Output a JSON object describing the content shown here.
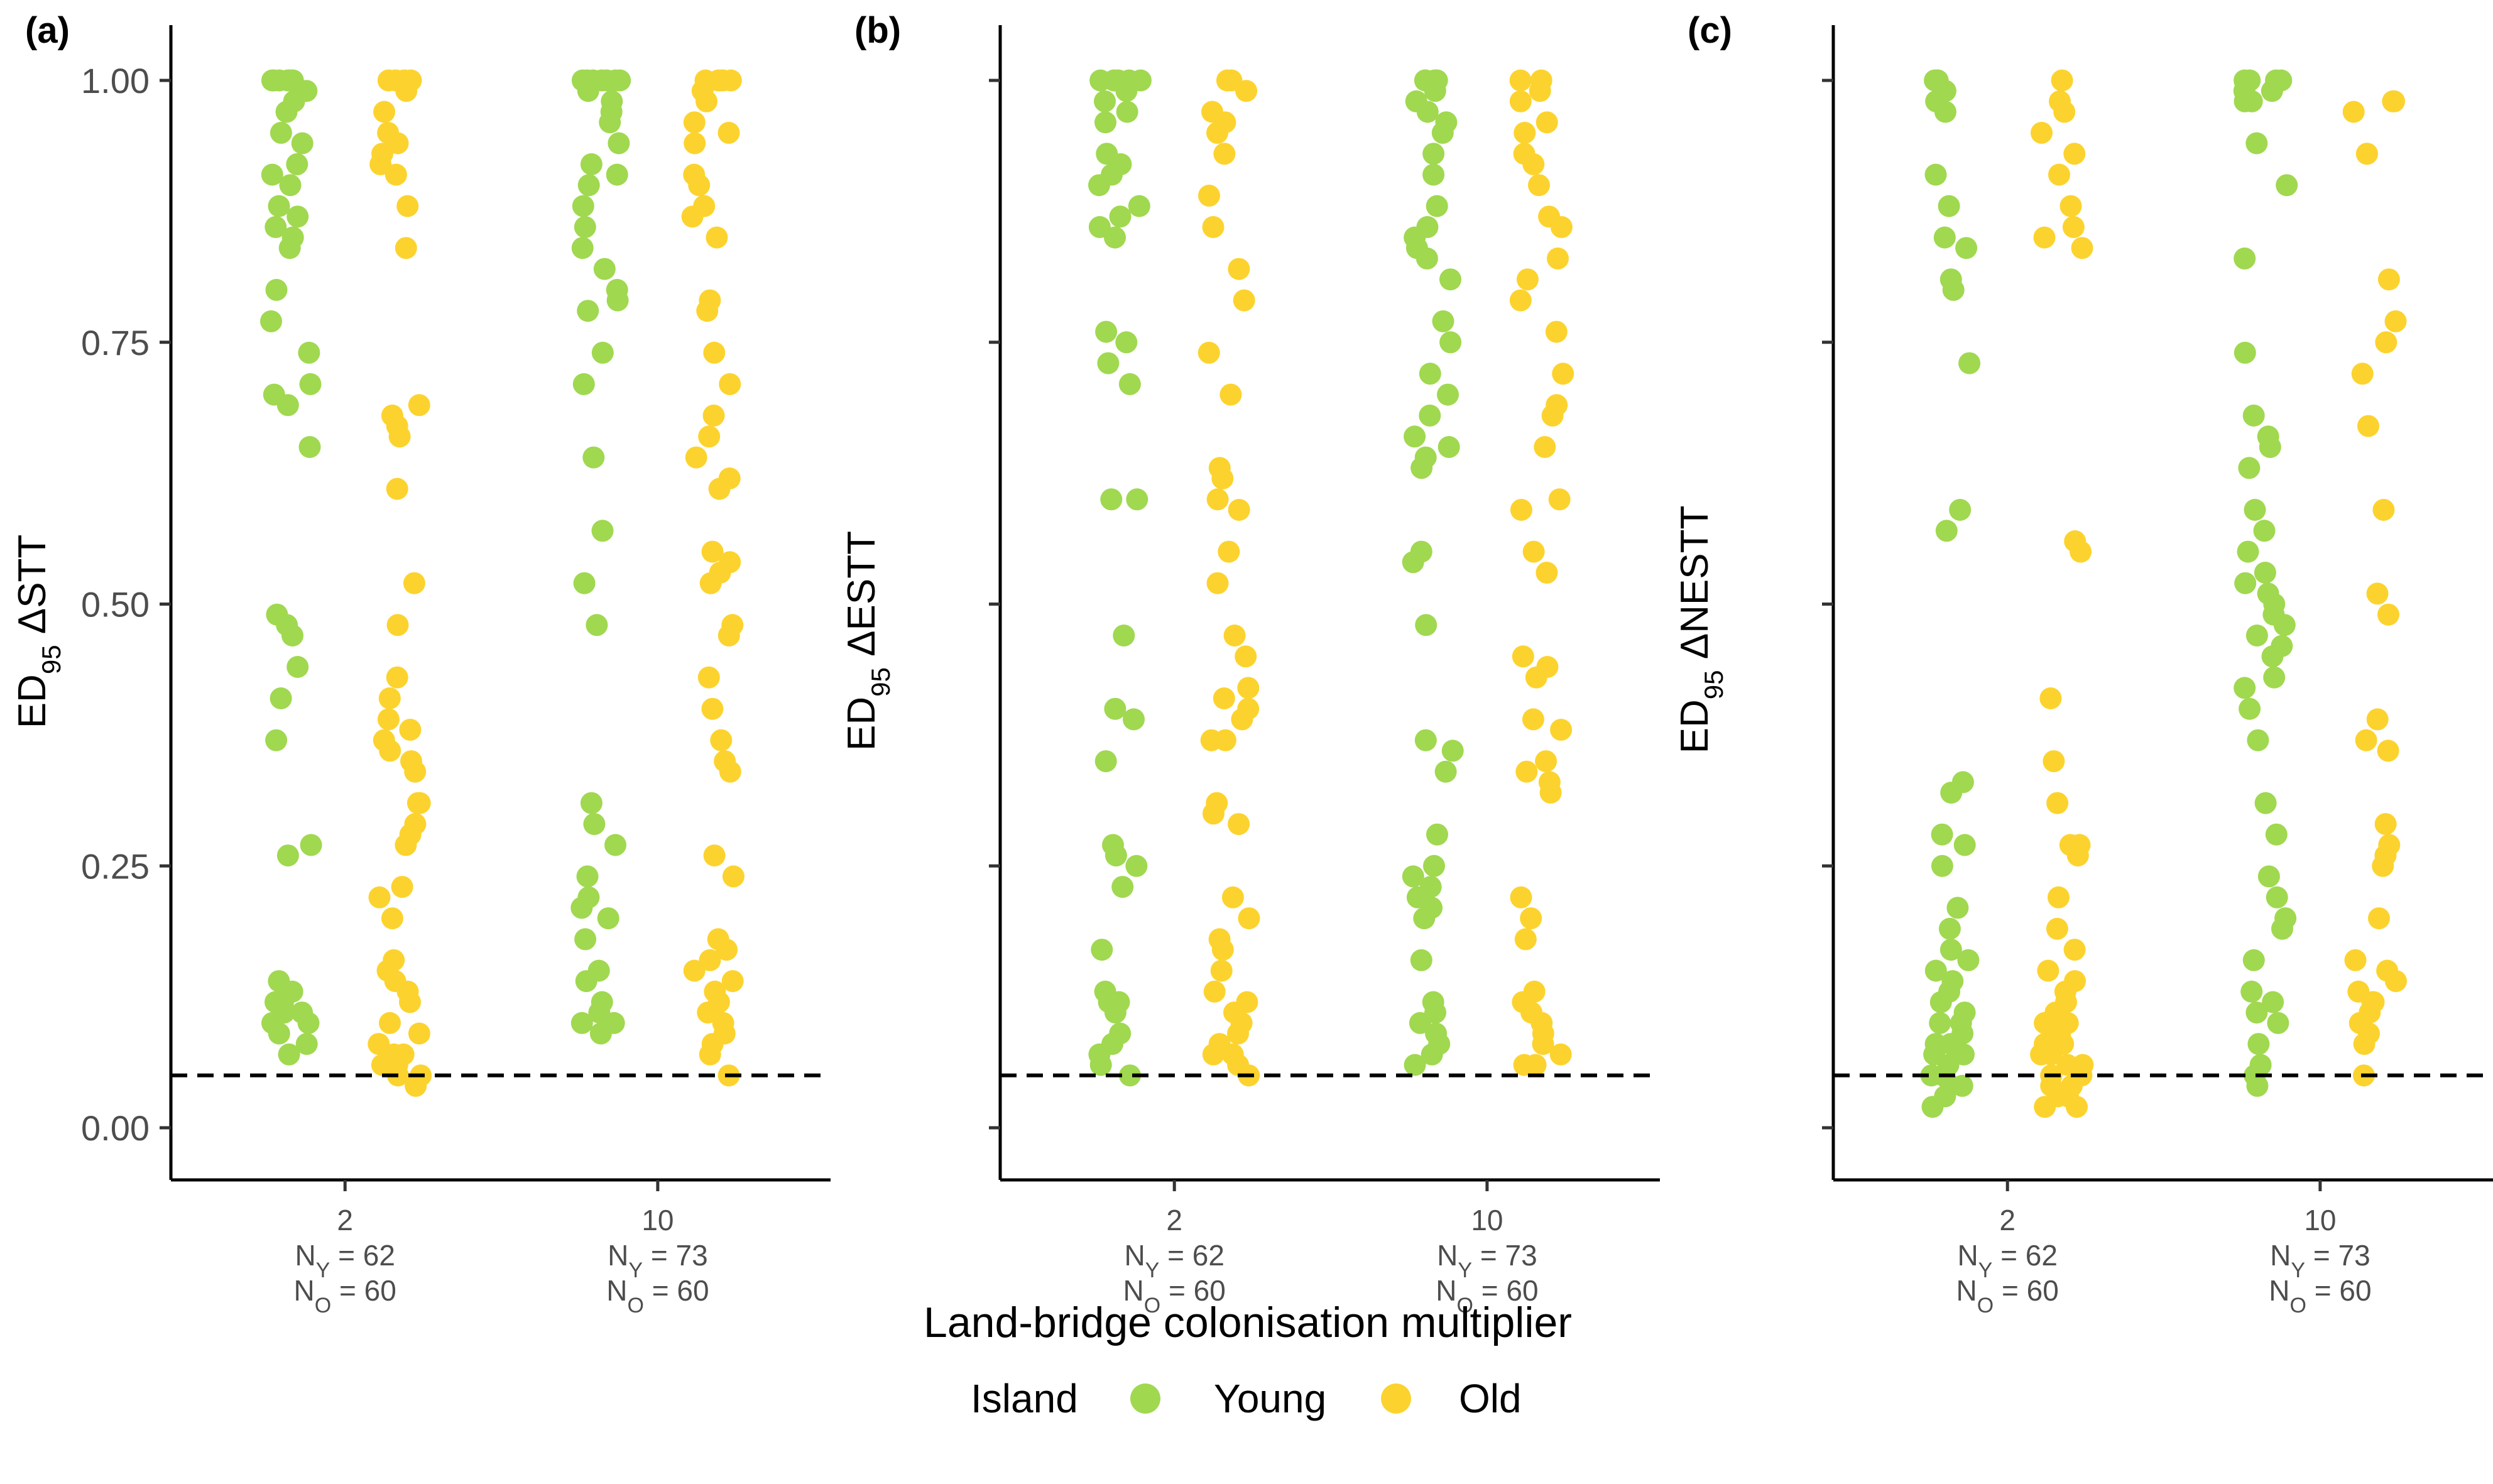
{
  "figure": {
    "xlabel": "Land-bridge colonisation multiplier",
    "legend": {
      "title": "Island",
      "placement": "bottom",
      "entries": [
        {
          "label": "Young",
          "color": "#a0d850"
        },
        {
          "label": "Old",
          "color": "#fcd32e"
        }
      ]
    },
    "categories": [
      "2",
      "10"
    ],
    "category_counts": [
      {
        "young": "62",
        "old": "60"
      },
      {
        "young": "73",
        "old": "60"
      }
    ],
    "y_ticks": [
      "0.00",
      "0.25",
      "0.50",
      "0.75",
      "1.00"
    ]
  },
  "chart_data": [
    {
      "type": "scatter",
      "panel_label": "(a)",
      "ylabel_main": "ED",
      "ylabel_sub": "95",
      "ylabel_rest": " ΔSTT",
      "ylim": [
        -0.05,
        1.05
      ],
      "reference_line": 0.05,
      "y_tick_labels_shown": true,
      "series": [
        {
          "name": "Young",
          "category": "2",
          "values": [
            1.0,
            1.0,
            1.0,
            1.0,
            1.0,
            1.0,
            1.0,
            0.99,
            0.98,
            0.97,
            0.95,
            0.94,
            0.92,
            0.91,
            0.9,
            0.88,
            0.87,
            0.86,
            0.85,
            0.84,
            0.8,
            0.77,
            0.74,
            0.71,
            0.7,
            0.69,
            0.65,
            0.49,
            0.48,
            0.47,
            0.44,
            0.41,
            0.37,
            0.27,
            0.26,
            0.14,
            0.13,
            0.12,
            0.12,
            0.11,
            0.11,
            0.11,
            0.1,
            0.1,
            0.09,
            0.08,
            0.07
          ]
        },
        {
          "name": "Old",
          "category": "2",
          "values": [
            1.0,
            1.0,
            1.0,
            1.0,
            0.99,
            0.97,
            0.95,
            0.94,
            0.93,
            0.92,
            0.91,
            0.88,
            0.84,
            0.69,
            0.68,
            0.67,
            0.66,
            0.61,
            0.52,
            0.48,
            0.43,
            0.41,
            0.39,
            0.38,
            0.37,
            0.36,
            0.35,
            0.34,
            0.31,
            0.31,
            0.29,
            0.28,
            0.27,
            0.23,
            0.22,
            0.2,
            0.16,
            0.15,
            0.14,
            0.13,
            0.12,
            0.1,
            0.09,
            0.08,
            0.07,
            0.07,
            0.06,
            0.06,
            0.05,
            0.05,
            0.04
          ]
        },
        {
          "name": "Young",
          "category": "10",
          "values": [
            1.0,
            1.0,
            1.0,
            1.0,
            1.0,
            1.0,
            1.0,
            0.99,
            0.98,
            0.97,
            0.96,
            0.94,
            0.92,
            0.91,
            0.9,
            0.88,
            0.86,
            0.84,
            0.82,
            0.8,
            0.79,
            0.78,
            0.74,
            0.71,
            0.64,
            0.57,
            0.52,
            0.48,
            0.31,
            0.29,
            0.27,
            0.24,
            0.22,
            0.21,
            0.2,
            0.18,
            0.15,
            0.14,
            0.12,
            0.11,
            0.1,
            0.1,
            0.09
          ]
        },
        {
          "name": "Old",
          "category": "10",
          "values": [
            1.0,
            1.0,
            1.0,
            1.0,
            1.0,
            0.99,
            0.98,
            0.96,
            0.95,
            0.94,
            0.91,
            0.9,
            0.88,
            0.87,
            0.85,
            0.79,
            0.78,
            0.74,
            0.71,
            0.68,
            0.66,
            0.64,
            0.62,
            0.61,
            0.55,
            0.54,
            0.53,
            0.52,
            0.48,
            0.47,
            0.43,
            0.4,
            0.37,
            0.35,
            0.34,
            0.26,
            0.24,
            0.18,
            0.17,
            0.16,
            0.15,
            0.14,
            0.13,
            0.12,
            0.11,
            0.1,
            0.09,
            0.08,
            0.07,
            0.05
          ]
        }
      ]
    },
    {
      "type": "scatter",
      "panel_label": "(b)",
      "ylabel_main": "ED",
      "ylabel_sub": "95",
      "ylabel_rest": " ΔESTT",
      "ylim": [
        -0.05,
        1.05
      ],
      "reference_line": 0.05,
      "y_tick_labels_shown": false,
      "series": [
        {
          "name": "Young",
          "category": "2",
          "values": [
            1.0,
            1.0,
            1.0,
            1.0,
            1.0,
            0.99,
            0.98,
            0.97,
            0.96,
            0.93,
            0.92,
            0.91,
            0.9,
            0.88,
            0.87,
            0.86,
            0.85,
            0.76,
            0.75,
            0.73,
            0.71,
            0.6,
            0.6,
            0.47,
            0.4,
            0.39,
            0.35,
            0.27,
            0.26,
            0.25,
            0.23,
            0.17,
            0.13,
            0.12,
            0.12,
            0.11,
            0.09,
            0.08,
            0.07,
            0.06,
            0.05
          ]
        },
        {
          "name": "Old",
          "category": "2",
          "values": [
            1.0,
            1.0,
            0.99,
            0.97,
            0.96,
            0.95,
            0.93,
            0.89,
            0.86,
            0.82,
            0.79,
            0.74,
            0.7,
            0.63,
            0.62,
            0.6,
            0.59,
            0.55,
            0.52,
            0.47,
            0.45,
            0.42,
            0.41,
            0.4,
            0.39,
            0.37,
            0.37,
            0.31,
            0.3,
            0.29,
            0.22,
            0.2,
            0.18,
            0.17,
            0.15,
            0.13,
            0.12,
            0.11,
            0.1,
            0.09,
            0.08,
            0.07,
            0.07,
            0.06,
            0.05
          ]
        },
        {
          "name": "Young",
          "category": "10",
          "values": [
            1.0,
            1.0,
            1.0,
            1.0,
            0.99,
            0.98,
            0.97,
            0.96,
            0.95,
            0.93,
            0.91,
            0.88,
            0.86,
            0.85,
            0.84,
            0.83,
            0.81,
            0.77,
            0.75,
            0.72,
            0.7,
            0.68,
            0.66,
            0.65,
            0.64,
            0.63,
            0.55,
            0.54,
            0.48,
            0.37,
            0.36,
            0.34,
            0.28,
            0.25,
            0.24,
            0.23,
            0.22,
            0.21,
            0.2,
            0.16,
            0.12,
            0.11,
            0.1,
            0.09,
            0.08,
            0.07,
            0.06
          ]
        },
        {
          "name": "Old",
          "category": "10",
          "values": [
            1.0,
            1.0,
            0.99,
            0.98,
            0.96,
            0.95,
            0.93,
            0.92,
            0.9,
            0.87,
            0.86,
            0.83,
            0.81,
            0.79,
            0.76,
            0.72,
            0.69,
            0.68,
            0.65,
            0.6,
            0.59,
            0.55,
            0.53,
            0.45,
            0.44,
            0.43,
            0.39,
            0.38,
            0.35,
            0.34,
            0.33,
            0.32,
            0.22,
            0.2,
            0.18,
            0.13,
            0.12,
            0.11,
            0.1,
            0.09,
            0.08,
            0.07,
            0.06,
            0.06
          ]
        }
      ]
    },
    {
      "type": "scatter",
      "panel_label": "(c)",
      "ylabel_main": "ED",
      "ylabel_sub": "95",
      "ylabel_rest": " ΔNESTT",
      "ylim": [
        -0.05,
        1.05
      ],
      "reference_line": 0.05,
      "y_tick_labels_shown": false,
      "series": [
        {
          "name": "Young",
          "category": "2",
          "values": [
            1.0,
            1.0,
            1.0,
            0.99,
            0.98,
            0.97,
            0.91,
            0.88,
            0.85,
            0.84,
            0.81,
            0.8,
            0.73,
            0.59,
            0.57,
            0.33,
            0.32,
            0.28,
            0.27,
            0.25,
            0.21,
            0.19,
            0.17,
            0.16,
            0.15,
            0.14,
            0.13,
            0.12,
            0.11,
            0.1,
            0.1,
            0.09,
            0.08,
            0.08,
            0.07,
            0.07,
            0.06,
            0.05,
            0.05,
            0.04,
            0.04,
            0.03,
            0.02
          ]
        },
        {
          "name": "Old",
          "category": "2",
          "values": [
            1.0,
            0.98,
            0.97,
            0.95,
            0.93,
            0.91,
            0.88,
            0.86,
            0.85,
            0.84,
            0.56,
            0.55,
            0.41,
            0.35,
            0.31,
            0.27,
            0.27,
            0.26,
            0.22,
            0.19,
            0.17,
            0.15,
            0.14,
            0.13,
            0.12,
            0.11,
            0.1,
            0.1,
            0.09,
            0.09,
            0.08,
            0.08,
            0.07,
            0.07,
            0.06,
            0.06,
            0.05,
            0.05,
            0.05,
            0.04,
            0.04,
            0.03,
            0.03,
            0.02,
            0.02
          ]
        },
        {
          "name": "Young",
          "category": "10",
          "values": [
            1.0,
            1.0,
            1.0,
            1.0,
            0.99,
            0.99,
            0.98,
            0.98,
            0.94,
            0.9,
            0.83,
            0.74,
            0.68,
            0.66,
            0.65,
            0.63,
            0.59,
            0.57,
            0.55,
            0.53,
            0.52,
            0.51,
            0.5,
            0.49,
            0.48,
            0.47,
            0.46,
            0.45,
            0.43,
            0.42,
            0.4,
            0.37,
            0.31,
            0.28,
            0.24,
            0.22,
            0.2,
            0.19,
            0.16,
            0.13,
            0.12,
            0.11,
            0.1,
            0.08,
            0.06,
            0.05,
            0.04
          ]
        },
        {
          "name": "Old",
          "category": "10",
          "values": [
            0.98,
            0.98,
            0.97,
            0.93,
            0.93,
            0.81,
            0.77,
            0.75,
            0.72,
            0.67,
            0.59,
            0.51,
            0.49,
            0.39,
            0.37,
            0.36,
            0.29,
            0.27,
            0.26,
            0.25,
            0.2,
            0.16,
            0.15,
            0.14,
            0.13,
            0.12,
            0.12,
            0.11,
            0.1,
            0.09,
            0.08,
            0.05
          ]
        }
      ]
    }
  ]
}
